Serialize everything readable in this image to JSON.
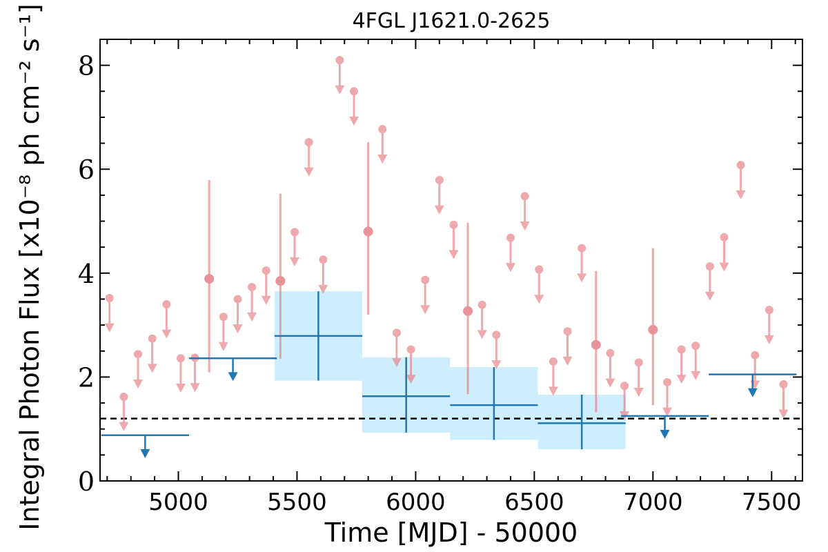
{
  "chart_data": {
    "type": "scatter",
    "title": "4FGL J1621.0-2625",
    "xlabel": "Time [MJD] - 50000",
    "ylabel": "Integral Photon Flux [x10⁻⁸ ph cm⁻² s⁻¹]",
    "xlim": [
      4670,
      7630
    ],
    "ylim": [
      0,
      8.5
    ],
    "xticks": [
      5000,
      5500,
      6000,
      6500,
      7000,
      7500
    ],
    "yticks": [
      0,
      2,
      4,
      6,
      8
    ],
    "xtick_labels": [
      "5000",
      "5500",
      "6000",
      "6500",
      "7000",
      "7500"
    ],
    "ytick_labels": [
      "0",
      "2",
      "4",
      "6",
      "8"
    ],
    "reference_level": 1.2,
    "colors": {
      "short_bins": "#e8868a",
      "long_bins": "#1f77b4",
      "long_bin_band": "#cdeefc",
      "reference_line": "#000000"
    },
    "series": [
      {
        "style": "short-bin upper limits",
        "x": [
          4710,
          4770,
          4830,
          4890,
          4950,
          5010,
          5070,
          5190,
          5250,
          5310,
          5370,
          5490,
          5550,
          5610,
          5680,
          5740,
          5860,
          5920,
          5980,
          6040,
          6100,
          6160,
          6280,
          6340,
          6400,
          6460,
          6520,
          6580,
          6640,
          6700,
          6820,
          6880,
          6940,
          7060,
          7120,
          7180,
          7240,
          7300,
          7370,
          7430,
          7490,
          7550
        ],
        "y": [
          3.52,
          1.62,
          2.44,
          2.74,
          3.4,
          2.36,
          2.37,
          3.16,
          3.5,
          3.73,
          4.05,
          4.79,
          6.52,
          4.26,
          8.1,
          7.5,
          6.77,
          2.85,
          2.53,
          3.87,
          5.79,
          4.93,
          3.39,
          2.81,
          4.68,
          5.48,
          4.07,
          2.3,
          2.88,
          4.48,
          2.46,
          1.83,
          2.28,
          1.9,
          2.53,
          2.6,
          4.13,
          4.69,
          6.08,
          2.42,
          3.29,
          1.86
        ]
      },
      {
        "style": "short-bin detections",
        "x": [
          5130,
          5430,
          5800,
          6220,
          6760,
          7000
        ],
        "y": [
          3.89,
          3.85,
          4.8,
          3.27,
          2.62,
          2.91
        ],
        "y_err_low": [
          1.8,
          1.5,
          1.6,
          1.6,
          1.3,
          1.45
        ],
        "y_err_high": [
          1.9,
          1.68,
          1.72,
          1.7,
          1.42,
          1.57
        ]
      },
      {
        "style": "long-bin detections",
        "x": [
          5590,
          5960,
          6330,
          6700
        ],
        "x_half_width": [
          185,
          185,
          185,
          185
        ],
        "y": [
          2.79,
          1.63,
          1.46,
          1.11
        ],
        "y_err_low": [
          0.86,
          0.7,
          0.67,
          0.5
        ],
        "y_err_high": [
          0.86,
          0.75,
          0.73,
          0.55
        ]
      },
      {
        "style": "long-bin upper limits",
        "x": [
          4860,
          5230,
          7050,
          7420
        ],
        "x_half_width": [
          185,
          185,
          185,
          185
        ],
        "y": [
          0.88,
          2.36,
          1.25,
          2.05
        ]
      }
    ]
  }
}
